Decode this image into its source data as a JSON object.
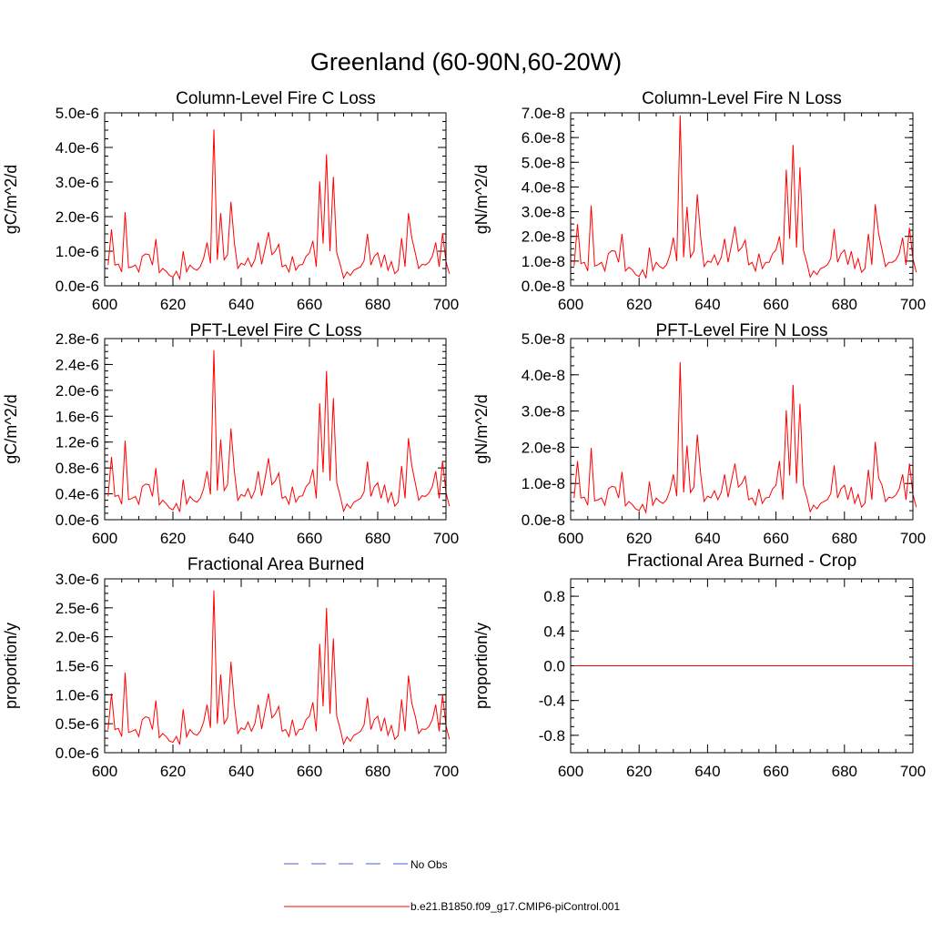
{
  "title": "Greenland (60-90N,60-20W)",
  "legend": [
    {
      "label": "No Obs",
      "color": "#4a5fd0",
      "style": "dashed"
    },
    {
      "label": "b.e21.B1850.f09_g17.CMIP6-piControl.001",
      "color": "#ff0000",
      "style": "solid"
    }
  ],
  "chart_data": [
    {
      "type": "line",
      "title": "Column-Level Fire C Loss",
      "ylabel": "gC/m^2/d",
      "xlim": [
        600,
        700
      ],
      "ylim": [
        0,
        5e-06
      ],
      "xticks": [
        600,
        620,
        640,
        660,
        680,
        700
      ],
      "xtick_labels": [
        "600",
        "620",
        "640",
        "660",
        "680",
        "700"
      ],
      "yticks": [
        0,
        1e-06,
        2e-06,
        3e-06,
        4e-06,
        5e-06
      ],
      "ytick_labels": [
        "0.0e-6",
        "1.0e-6",
        "2.0e-6",
        "3.0e-6",
        "4.0e-6",
        "5.0e-6"
      ],
      "series": [
        {
          "name": "b.e21.B1850.f09_g17.CMIP6-piControl.001",
          "color": "#ff0000",
          "x_start": 601,
          "x_step": 1,
          "values": [
            6e-07,
            1.63e-06,
            6e-07,
            6.3e-07,
            4e-07,
            2.13e-06,
            5.2e-07,
            5.5e-07,
            6e-07,
            4e-07,
            8.5e-07,
            9.2e-07,
            9e-07,
            6e-07,
            1.35e-06,
            3.8e-07,
            5e-07,
            4.2e-07,
            3e-07,
            2.5e-07,
            4.2e-07,
            2e-07,
            1e-06,
            4e-07,
            6e-07,
            5e-07,
            4.5e-07,
            5.5e-07,
            8e-07,
            1.25e-06,
            6.5e-07,
            4.52e-06,
            7.5e-07,
            2.1e-06,
            7.5e-07,
            9e-07,
            2.43e-06,
            1.25e-06,
            5e-07,
            6.5e-07,
            6e-07,
            8e-07,
            5.5e-07,
            7.5e-07,
            1.25e-06,
            6.2e-07,
            1.08e-06,
            1.55e-06,
            9e-07,
            1e-06,
            1.2e-06,
            5.5e-07,
            6e-07,
            4e-07,
            8.5e-07,
            4.5e-07,
            6e-07,
            6.2e-07,
            8.5e-07,
            9.5e-07,
            1.3e-06,
            5.5e-07,
            3.02e-06,
            1.22e-06,
            3.8e-06,
            1e-06,
            3.15e-06,
            9.5e-07,
            6.2e-07,
            2.2e-07,
            4e-07,
            3e-07,
            4.5e-07,
            5e-07,
            5.5e-07,
            7.2e-07,
            1.5e-06,
            6e-07,
            8.5e-07,
            9.5e-07,
            5.5e-07,
            9e-07,
            4.5e-07,
            7e-07,
            3.5e-07,
            4.5e-07,
            1.38e-06,
            5.5e-07,
            2.1e-06,
            1.38e-06,
            9.5e-07,
            5e-07,
            6.2e-07,
            6e-07,
            6.8e-07,
            8.5e-07,
            1.25e-06,
            5.5e-07,
            1.52e-06,
            7e-07,
            3.5e-07
          ]
        }
      ]
    },
    {
      "type": "line",
      "title": "Column-Level Fire N Loss",
      "ylabel": "gN/m^2/d",
      "xlim": [
        600,
        700
      ],
      "ylim": [
        0,
        7e-08
      ],
      "xticks": [
        600,
        620,
        640,
        660,
        680,
        700
      ],
      "xtick_labels": [
        "600",
        "620",
        "640",
        "660",
        "680",
        "700"
      ],
      "yticks": [
        0,
        1e-08,
        2e-08,
        3e-08,
        4e-08,
        5e-08,
        6e-08,
        7e-08
      ],
      "ytick_labels": [
        "0.0e-8",
        "1.0e-8",
        "2.0e-8",
        "3.0e-8",
        "4.0e-8",
        "5.0e-8",
        "6.0e-8",
        "7.0e-8"
      ],
      "series": [
        {
          "name": "b.e21.B1850.f09_g17.CMIP6-piControl.001",
          "color": "#ff0000",
          "x_start": 601,
          "x_step": 1,
          "values": [
            8e-09,
            2.5e-08,
            9e-09,
            9.5e-09,
            6e-09,
            3.25e-08,
            8e-09,
            8.5e-09,
            9.5e-09,
            6e-09,
            1.3e-08,
            1.42e-08,
            1.4e-08,
            9.5e-09,
            2.1e-08,
            6e-09,
            7.5e-09,
            6.5e-09,
            4.5e-09,
            3.8e-09,
            6.5e-09,
            3e-09,
            1.55e-08,
            6.2e-09,
            9.5e-09,
            7.8e-09,
            7e-09,
            8.5e-09,
            1.25e-08,
            1.95e-08,
            1e-08,
            6.9e-08,
            1.15e-08,
            3.2e-08,
            1.15e-08,
            1.4e-08,
            3.7e-08,
            1.95e-08,
            7.8e-09,
            1e-08,
            9.5e-09,
            1.25e-08,
            8.5e-09,
            1.15e-08,
            1.9e-08,
            9.5e-09,
            1.65e-08,
            2.4e-08,
            1.4e-08,
            1.55e-08,
            1.85e-08,
            8.5e-09,
            9.5e-09,
            6e-09,
            1.3e-08,
            7e-09,
            9.5e-09,
            9.5e-09,
            1.3e-08,
            1.45e-08,
            2e-08,
            8.5e-09,
            4.7e-08,
            1.9e-08,
            5.7e-08,
            1.55e-08,
            4.8e-08,
            1.45e-08,
            9.5e-09,
            3.5e-09,
            6e-09,
            4.5e-09,
            7e-09,
            7.5e-09,
            8.5e-09,
            1.1e-08,
            2.3e-08,
            9.5e-09,
            1.3e-08,
            1.45e-08,
            8.5e-09,
            1.4e-08,
            7e-09,
            1.1e-08,
            5.5e-09,
            7e-09,
            2.1e-08,
            8.5e-09,
            3.3e-08,
            2.1e-08,
            1.45e-08,
            7.8e-09,
            9.5e-09,
            9.5e-09,
            1.05e-08,
            1.3e-08,
            1.95e-08,
            8.5e-09,
            2.35e-08,
            1.1e-08,
            5.5e-09
          ]
        }
      ]
    },
    {
      "type": "line",
      "title": "PFT-Level Fire C Loss",
      "ylabel": "gC/m^2/d",
      "xlim": [
        600,
        700
      ],
      "ylim": [
        0,
        2.8e-06
      ],
      "xticks": [
        600,
        620,
        640,
        660,
        680,
        700
      ],
      "xtick_labels": [
        "600",
        "620",
        "640",
        "660",
        "680",
        "700"
      ],
      "yticks": [
        0,
        4e-07,
        8e-07,
        1.2e-06,
        1.6e-06,
        2e-06,
        2.4e-06,
        2.8e-06
      ],
      "ytick_labels": [
        "0.0e-6",
        "0.4e-6",
        "0.8e-6",
        "1.2e-6",
        "1.6e-6",
        "2.0e-6",
        "2.4e-6",
        "2.8e-6"
      ],
      "series": [
        {
          "name": "b.e21.B1850.f09_g17.CMIP6-piControl.001",
          "color": "#ff0000",
          "x_start": 601,
          "x_step": 1,
          "values": [
            3.6e-07,
            9.7e-07,
            3.6e-07,
            3.8e-07,
            2.4e-07,
            1.22e-06,
            3.1e-07,
            3.3e-07,
            3.6e-07,
            2.4e-07,
            5.1e-07,
            5.5e-07,
            5.4e-07,
            3.6e-07,
            8e-07,
            2.3e-07,
            3e-07,
            2.5e-07,
            1.8e-07,
            1.5e-07,
            2.5e-07,
            1.2e-07,
            6.2e-07,
            2.4e-07,
            3.6e-07,
            3e-07,
            2.7e-07,
            3.3e-07,
            4.8e-07,
            7.5e-07,
            3.9e-07,
            2.62e-06,
            4.5e-07,
            1.24e-06,
            4.5e-07,
            5.4e-07,
            1.41e-06,
            7.5e-07,
            3e-07,
            3.9e-07,
            3.6e-07,
            4.8e-07,
            3.3e-07,
            4.5e-07,
            7.5e-07,
            3.7e-07,
            6.4e-07,
            9.5e-07,
            5.4e-07,
            6e-07,
            7.2e-07,
            3.3e-07,
            3.6e-07,
            2.4e-07,
            5.1e-07,
            2.7e-07,
            3.6e-07,
            3.7e-07,
            5.1e-07,
            5.7e-07,
            7.8e-07,
            3.3e-07,
            1.8e-06,
            7.3e-07,
            2.3e-06,
            6e-07,
            1.88e-06,
            5.7e-07,
            3.7e-07,
            1.3e-07,
            2.4e-07,
            1.8e-07,
            2.7e-07,
            3e-07,
            3.3e-07,
            4.3e-07,
            9e-07,
            3.6e-07,
            5.1e-07,
            5.7e-07,
            3.3e-07,
            5.4e-07,
            2.7e-07,
            4.2e-07,
            2.1e-07,
            2.7e-07,
            8.3e-07,
            3.3e-07,
            1.26e-06,
            8.3e-07,
            5.7e-07,
            3e-07,
            3.7e-07,
            3.6e-07,
            4.1e-07,
            5.1e-07,
            7.5e-07,
            3.3e-07,
            9.1e-07,
            4.2e-07,
            2.1e-07
          ]
        }
      ]
    },
    {
      "type": "line",
      "title": "PFT-Level Fire N Loss",
      "ylabel": "gN/m^2/d",
      "xlim": [
        600,
        700
      ],
      "ylim": [
        0,
        5e-08
      ],
      "xticks": [
        600,
        620,
        640,
        660,
        680,
        700
      ],
      "xtick_labels": [
        "600",
        "620",
        "640",
        "660",
        "680",
        "700"
      ],
      "yticks": [
        0,
        1e-08,
        2e-08,
        3e-08,
        4e-08,
        5e-08
      ],
      "ytick_labels": [
        "0.0e-8",
        "1.0e-8",
        "2.0e-8",
        "3.0e-8",
        "4.0e-8",
        "5.0e-8"
      ],
      "series": [
        {
          "name": "b.e21.B1850.f09_g17.CMIP6-piControl.001",
          "color": "#ff0000",
          "x_start": 601,
          "x_step": 1,
          "values": [
            6e-09,
            1.62e-08,
            6e-09,
            6.2e-09,
            4e-09,
            1.98e-08,
            5.2e-09,
            5.5e-09,
            6e-09,
            4e-09,
            8.5e-09,
            9.2e-09,
            9e-09,
            6e-09,
            1.32e-08,
            3.8e-09,
            5e-09,
            4.2e-09,
            3e-09,
            2.5e-09,
            4.2e-09,
            2e-09,
            1.05e-08,
            4e-09,
            6e-09,
            5e-09,
            4.5e-09,
            5.5e-09,
            8e-09,
            1.25e-08,
            6.5e-09,
            4.35e-08,
            7.5e-09,
            2.05e-08,
            7.5e-09,
            9e-09,
            2.35e-08,
            1.25e-08,
            5e-09,
            6.5e-09,
            6e-09,
            8e-09,
            5.5e-09,
            7.5e-09,
            1.25e-08,
            6.2e-09,
            1.08e-08,
            1.55e-08,
            9e-09,
            1e-08,
            1.2e-08,
            5.5e-09,
            6e-09,
            4e-09,
            8.5e-09,
            4.5e-09,
            6e-09,
            6.2e-09,
            8.5e-09,
            9.5e-09,
            1.62e-08,
            5.5e-09,
            3.02e-08,
            1.22e-08,
            3.72e-08,
            1e-08,
            3.2e-08,
            9.5e-09,
            6.2e-09,
            2.2e-09,
            4e-09,
            3e-09,
            4.5e-09,
            5e-09,
            5.5e-09,
            7.2e-09,
            1.5e-08,
            6e-09,
            8.5e-09,
            9.5e-09,
            5.5e-09,
            9e-09,
            4.5e-09,
            7e-09,
            3.5e-09,
            4.5e-09,
            1.38e-08,
            5.5e-09,
            2.15e-08,
            1.15e-08,
            9.5e-09,
            5e-09,
            6.2e-09,
            6e-09,
            6.8e-09,
            8.5e-09,
            1.25e-08,
            5.5e-09,
            1.55e-08,
            7e-09,
            3.5e-09
          ]
        }
      ]
    },
    {
      "type": "line",
      "title": "Fractional Area Burned",
      "ylabel": "proportion/y",
      "xlim": [
        600,
        700
      ],
      "ylim": [
        0,
        3e-06
      ],
      "xticks": [
        600,
        620,
        640,
        660,
        680,
        700
      ],
      "xtick_labels": [
        "600",
        "620",
        "640",
        "660",
        "680",
        "700"
      ],
      "yticks": [
        0,
        5e-07,
        1e-06,
        1.5e-06,
        2e-06,
        2.5e-06,
        3e-06
      ],
      "ytick_labels": [
        "0.0e-6",
        "0.5e-6",
        "1.0e-6",
        "1.5e-6",
        "2.0e-6",
        "2.5e-6",
        "3.0e-6"
      ],
      "series": [
        {
          "name": "b.e21.B1850.f09_g17.CMIP6-piControl.001",
          "color": "#ff0000",
          "x_start": 601,
          "x_step": 1,
          "values": [
            4e-07,
            1.02e-06,
            4e-07,
            4.2e-07,
            2.8e-07,
            1.38e-06,
            3.5e-07,
            3.7e-07,
            4e-07,
            2.8e-07,
            5.7e-07,
            6.2e-07,
            6e-07,
            4e-07,
            9e-07,
            2.6e-07,
            3.3e-07,
            2.8e-07,
            2e-07,
            1.8e-07,
            2.8e-07,
            1.4e-07,
            7.5e-07,
            2.7e-07,
            4e-07,
            3.3e-07,
            3e-07,
            3.7e-07,
            5.3e-07,
            8.3e-07,
            4.3e-07,
            2.8e-06,
            5e-07,
            1.35e-06,
            5e-07,
            6e-07,
            1.57e-06,
            8.3e-07,
            3.3e-07,
            4.3e-07,
            4e-07,
            5.3e-07,
            3.7e-07,
            5e-07,
            8.3e-07,
            4.1e-07,
            7.2e-07,
            1.02e-06,
            6e-07,
            6.7e-07,
            8e-07,
            3.7e-07,
            4e-07,
            2.8e-07,
            5.7e-07,
            3e-07,
            4e-07,
            4.1e-07,
            5.7e-07,
            6.3e-07,
            8.7e-07,
            3.7e-07,
            1.88e-06,
            8e-07,
            2.5e-06,
            6.7e-07,
            1.97e-06,
            6.3e-07,
            4.1e-07,
            1.5e-07,
            2.7e-07,
            2e-07,
            3e-07,
            3.3e-07,
            3.7e-07,
            4.8e-07,
            9.5e-07,
            4e-07,
            5.7e-07,
            6.3e-07,
            3.7e-07,
            6e-07,
            3e-07,
            4.7e-07,
            2.3e-07,
            3e-07,
            9.2e-07,
            3.7e-07,
            1.33e-06,
            8.5e-07,
            6.3e-07,
            3.3e-07,
            4.1e-07,
            4e-07,
            4.5e-07,
            5.7e-07,
            8.3e-07,
            3.7e-07,
            1e-06,
            4.7e-07,
            2.3e-07
          ]
        }
      ]
    },
    {
      "type": "line",
      "title": "Fractional Area Burned - Crop",
      "ylabel": "proportion/y",
      "xlim": [
        600,
        700
      ],
      "ylim": [
        -1.0,
        1.0
      ],
      "xticks": [
        600,
        620,
        640,
        660,
        680,
        700
      ],
      "xtick_labels": [
        "600",
        "620",
        "640",
        "660",
        "680",
        "700"
      ],
      "yticks": [
        -0.8,
        -0.4,
        0.0,
        0.4,
        0.8
      ],
      "ytick_labels": [
        "-0.8",
        "-0.4",
        "0.0",
        "0.4",
        "0.8"
      ],
      "series": [
        {
          "name": "b.e21.B1850.f09_g17.CMIP6-piControl.001",
          "color": "#ff0000",
          "x": [
            601,
            700
          ],
          "values": [
            0,
            0
          ]
        }
      ]
    }
  ]
}
